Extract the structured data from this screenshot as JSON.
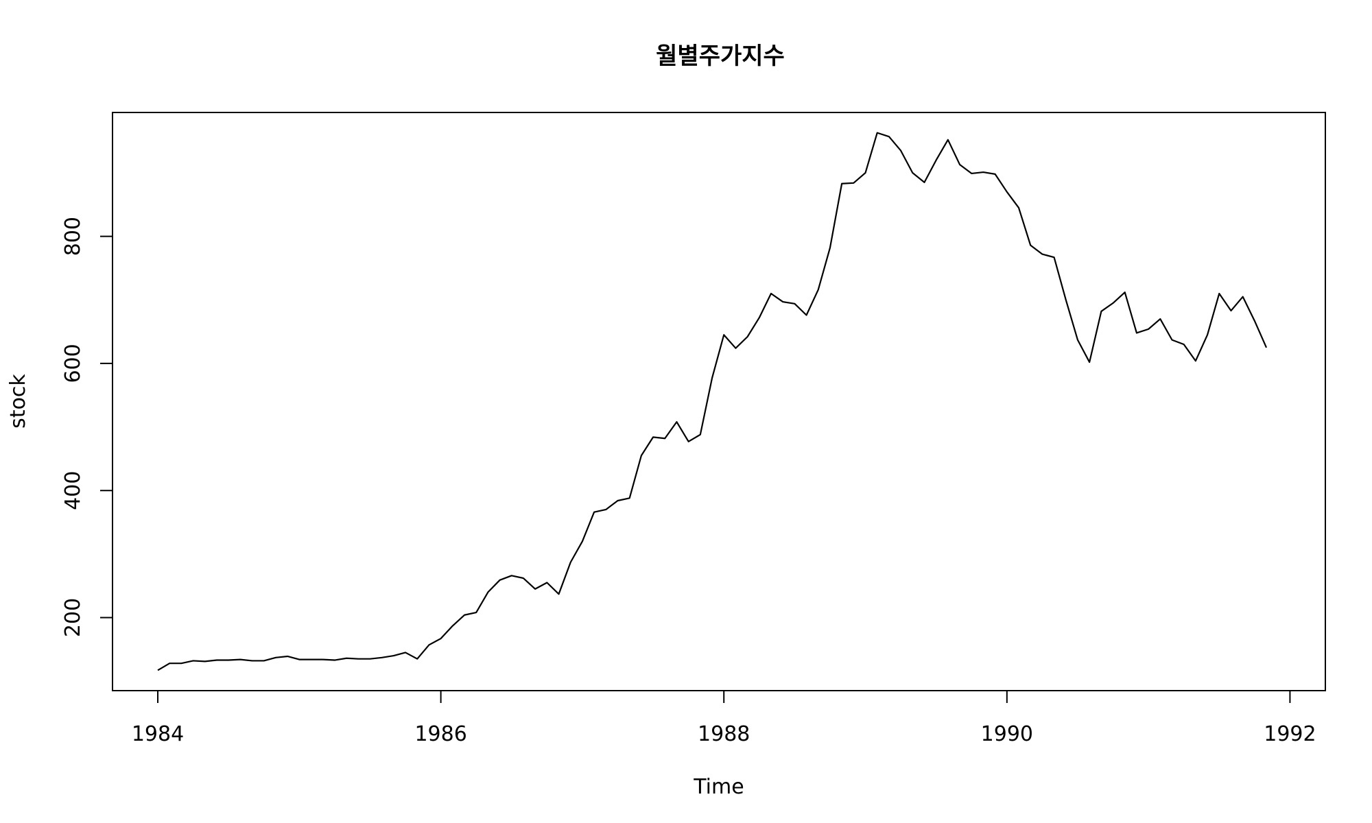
{
  "chart_data": {
    "type": "line",
    "title": "월별주가지수",
    "xlabel": "Time",
    "ylabel": "stock",
    "x_start": 1984,
    "frequency": 12,
    "xlim": [
      1983.68,
      1992.25
    ],
    "ylim": [
      85,
      995
    ],
    "x_ticks": [
      1984,
      1986,
      1988,
      1990,
      1992
    ],
    "y_ticks": [
      200,
      400,
      600,
      800
    ],
    "grid": false,
    "series": [
      {
        "values": [
          117,
          128,
          128,
          132,
          131,
          133,
          133,
          134,
          132,
          132,
          137,
          139,
          134,
          134,
          134,
          133,
          136,
          135,
          135,
          137,
          140,
          145,
          135,
          157,
          167,
          187,
          204,
          208,
          240,
          259,
          266,
          262,
          245,
          255,
          237,
          287,
          320,
          366,
          370,
          384,
          388,
          455,
          484,
          482,
          508,
          477,
          488,
          577,
          645,
          624,
          642,
          672,
          710,
          697,
          694,
          676,
          716,
          782,
          883,
          884,
          900,
          963,
          957,
          935,
          900,
          885,
          920,
          952,
          913,
          899,
          901,
          898,
          870,
          845,
          786,
          772,
          767,
          700,
          637,
          602,
          682,
          695,
          712,
          648,
          654,
          670,
          637,
          630,
          604,
          645,
          710,
          683,
          705,
          667,
          625
        ]
      }
    ]
  }
}
